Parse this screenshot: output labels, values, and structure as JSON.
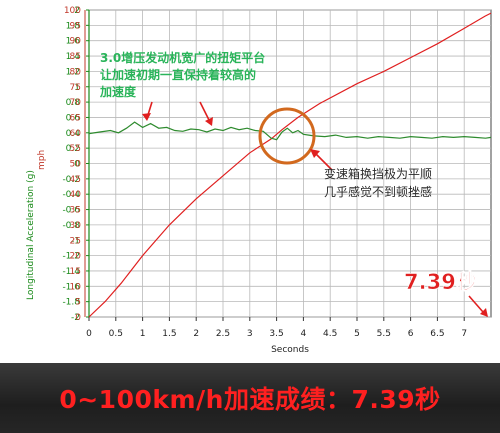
{
  "chart_data": {
    "type": "line",
    "xlabel": "Seconds",
    "left_axis_label": "Longitudinal Acceleration (g)",
    "right_axis_label": "mph",
    "x_ticks": [
      "0",
      "0.5",
      "1",
      "1.5",
      "2",
      "2.5",
      "3",
      "3.5",
      "4",
      "4.5",
      "5",
      "5.5",
      "6",
      "6.5",
      "7"
    ],
    "left_ticks": [
      "2",
      "1.8",
      "1.6",
      "1.4",
      "1.2",
      "1",
      "0.8",
      "0.6",
      "0.4",
      "0.2",
      "0",
      "-0.2",
      "-0.4",
      "-0.6",
      "-0.8",
      "-1",
      "-1.2",
      "-1.4",
      "-1.6",
      "-1.8",
      "-2"
    ],
    "right_ticks": [
      "100",
      "95",
      "90",
      "85",
      "80",
      "75",
      "70",
      "65",
      "60",
      "55",
      "50",
      "45",
      "40",
      "35",
      "30",
      "25",
      "20",
      "15",
      "10",
      "5",
      "0"
    ],
    "xlim": [
      0,
      7.5
    ],
    "ylim_left": [
      -2,
      2
    ],
    "ylim_right": [
      0,
      100
    ],
    "grid": true,
    "series": [
      {
        "axis": "right",
        "color": "#e02020",
        "x": [
          0,
          0.3,
          0.6,
          1.0,
          1.5,
          2.0,
          2.5,
          3.0,
          3.4,
          3.6,
          3.9,
          4.3,
          5.0,
          5.5,
          6.0,
          6.5,
          7.0,
          7.39,
          7.5
        ],
        "y": [
          0,
          5,
          11,
          20,
          30,
          38.5,
          46,
          53.5,
          58,
          61,
          65,
          69.5,
          76,
          80,
          84.5,
          89,
          94,
          98,
          99
        ]
      },
      {
        "axis": "left",
        "color": "#2e8b2e",
        "x": [
          0,
          0.2,
          0.4,
          0.55,
          0.7,
          0.85,
          1.0,
          1.15,
          1.3,
          1.45,
          1.6,
          1.75,
          1.9,
          2.05,
          2.2,
          2.35,
          2.5,
          2.65,
          2.8,
          2.95,
          3.1,
          3.25,
          3.4,
          3.5,
          3.55,
          3.6,
          3.7,
          3.8,
          3.9,
          4.0,
          4.1,
          4.2,
          4.4,
          4.6,
          4.8,
          5.0,
          5.2,
          5.4,
          5.6,
          5.8,
          6.0,
          6.2,
          6.4,
          6.6,
          6.8,
          7.0,
          7.2,
          7.4,
          7.5
        ],
        "y": [
          0.39,
          0.41,
          0.43,
          0.4,
          0.46,
          0.54,
          0.47,
          0.52,
          0.46,
          0.47,
          0.43,
          0.42,
          0.45,
          0.44,
          0.41,
          0.45,
          0.43,
          0.47,
          0.44,
          0.46,
          0.43,
          0.42,
          0.33,
          0.31,
          0.36,
          0.41,
          0.46,
          0.4,
          0.43,
          0.38,
          0.37,
          0.36,
          0.35,
          0.37,
          0.34,
          0.35,
          0.33,
          0.35,
          0.34,
          0.33,
          0.35,
          0.34,
          0.33,
          0.35,
          0.34,
          0.35,
          0.34,
          0.33,
          0.34
        ]
      }
    ],
    "annotations": {
      "torque_note": [
        "3.0增压发动机宽广的扭矩平台",
        "让加速初期一直保持着较高的",
        "加速度"
      ],
      "gearbox_note": [
        "变速箱换挡极为平顺",
        "几乎感觉不到顿挫感"
      ],
      "time_callout": "7.39秒"
    }
  },
  "colors": {
    "left_axis": "#1a8a1a",
    "right_axis": "#c0392b",
    "circle": "#d2691e",
    "callout": "#e02020",
    "banner_text": "#ff2020"
  },
  "banner": {
    "text": "0~100km/h加速成绩：7.39秒"
  }
}
